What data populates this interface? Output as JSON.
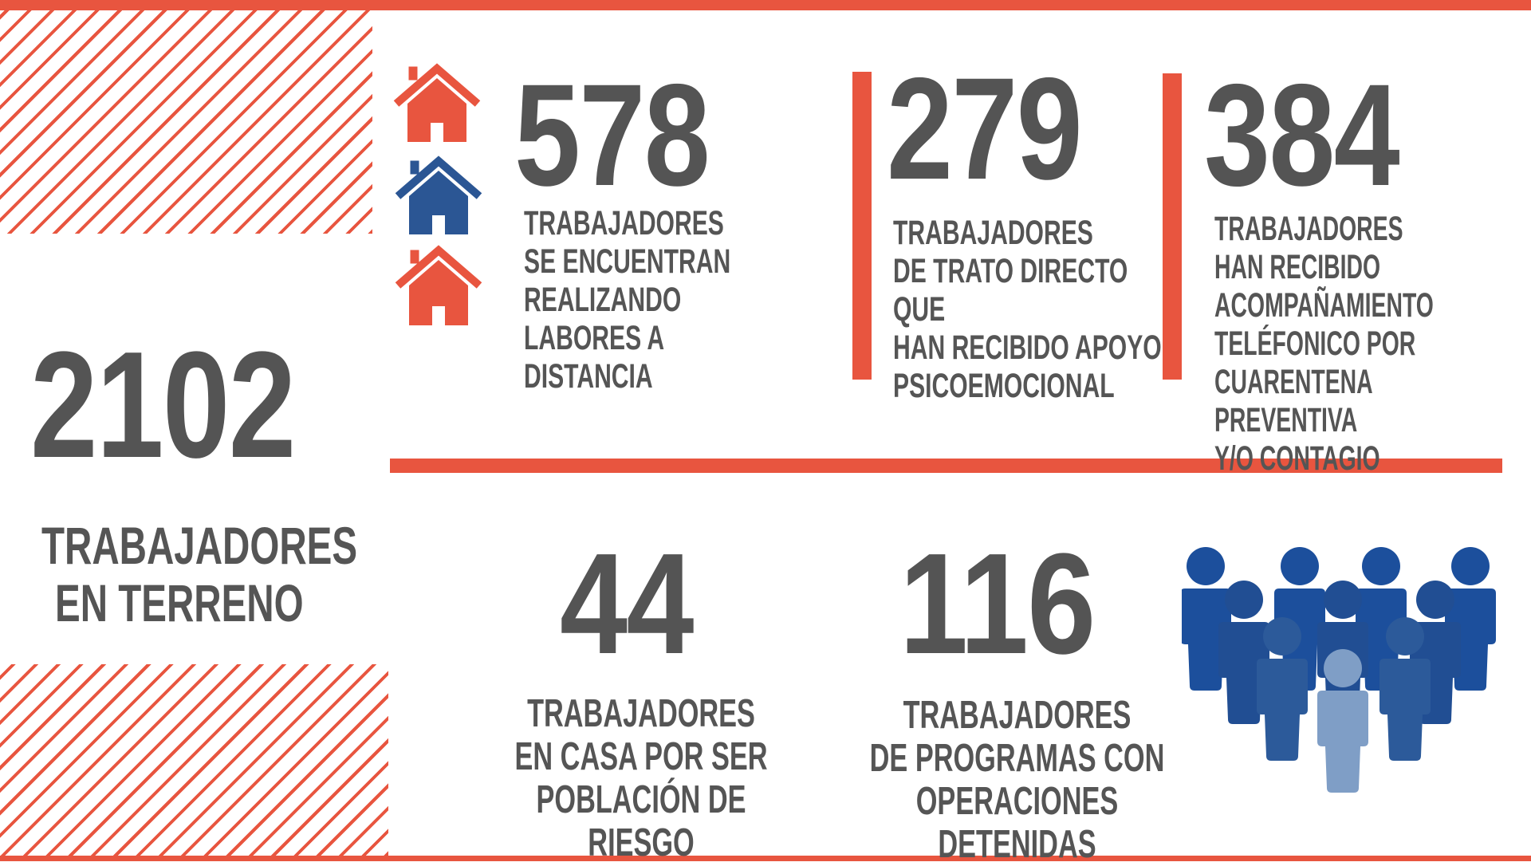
{
  "colors": {
    "accent": "#e8553f",
    "text": "#545454",
    "blue": "#2b5694",
    "people_blue": "#1c4f9c",
    "people_light": "#7f9ec6"
  },
  "main_stat": {
    "value": "2102",
    "label": "TRABAJADORES\nEN TERRENO"
  },
  "remote": {
    "value": "578",
    "label": "TRABAJADORES\nSE ENCUENTRAN\nREALIZANDO LABORES A\nDISTANCIA",
    "icon": "house-icon"
  },
  "psychological": {
    "value": "279",
    "label": "TRABAJADORES\nDE TRATO DIRECTO QUE\nHAN RECIBIDO APOYO\nPSICOEMOCIONAL"
  },
  "phone_followup": {
    "value": "384",
    "label": "TRABAJADORES\nHAN RECIBIDO\nACOMPAÑAMIENTO\nTELÉFONICO POR\nCUARENTENA PREVENTIVA\n Y/O CONTAGIO"
  },
  "risk_home": {
    "value": "44",
    "label": "TRABAJADORES\nEN CASA POR SER\nPOBLACIÓN DE RIESGO"
  },
  "stopped_programs": {
    "value": "116",
    "label": "TRABAJADORES\nDE PROGRAMAS CON\nOPERACIONES  DETENIDAS",
    "icon": "people-group-icon"
  }
}
